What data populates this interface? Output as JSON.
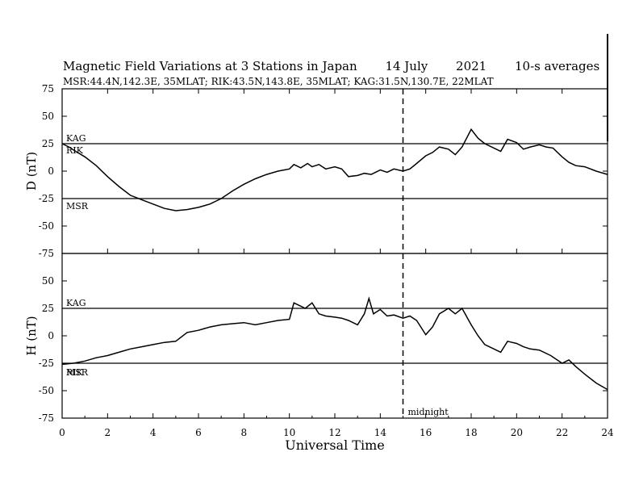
{
  "header": {
    "title": "Magnetic Field Variations at 3 Stations in Japan",
    "date": "14 July",
    "year": "2021",
    "averaging": "10-s averages",
    "stations": "MSR:44.4N,142.3E, 35MLAT;  RIK:43.5N,143.8E, 35MLAT;  KAG:31.5N,130.7E, 22MLAT"
  },
  "chart_data": [
    {
      "type": "line",
      "panel": "D",
      "ylabel": "D (nT)",
      "ylim": [
        -75,
        75
      ],
      "yticks": [
        "75",
        "50",
        "25",
        "0",
        "-25",
        "-50",
        "-75"
      ],
      "baselines": [
        {
          "name": "KAG",
          "offset": 25
        },
        {
          "name": "RIK",
          "offset": 25
        },
        {
          "name": "MSR",
          "offset": -25
        }
      ],
      "series": [
        {
          "name": "RIK",
          "x": [
            0,
            0.3,
            0.6,
            1.0,
            1.5,
            2.0,
            2.5,
            3.0,
            3.5,
            4.0,
            4.5,
            5.0,
            5.5,
            6.0,
            6.5,
            7.0,
            7.5,
            8.0,
            8.5,
            9.0,
            9.5,
            10.0,
            10.2,
            10.5,
            10.8,
            11.0,
            11.3,
            11.6,
            12.0,
            12.3,
            12.6,
            13.0,
            13.3,
            13.6,
            14.0,
            14.3,
            14.6,
            15.0,
            15.3,
            15.6,
            16.0,
            16.3,
            16.6,
            17.0,
            17.3,
            17.6,
            18.0,
            18.3,
            18.6,
            19.0,
            19.3,
            19.6,
            20.0,
            20.3,
            20.6,
            21.0,
            21.3,
            21.6,
            22.0,
            22.3,
            22.6,
            23.0,
            23.5,
            24.0
          ],
          "y": [
            25,
            22,
            18,
            13,
            5,
            -5,
            -14,
            -22,
            -26,
            -30,
            -34,
            -36,
            -35,
            -33,
            -30,
            -25,
            -18,
            -12,
            -7,
            -3,
            0,
            2,
            6,
            3,
            7,
            4,
            6,
            2,
            4,
            2,
            -5,
            -4,
            -2,
            -3,
            1,
            -1,
            2,
            0,
            2,
            7,
            14,
            17,
            22,
            20,
            15,
            22,
            38,
            30,
            25,
            21,
            18,
            29,
            26,
            20,
            22,
            24,
            22,
            21,
            13,
            8,
            5,
            4,
            0,
            -3
          ]
        },
        {
          "name": "MSR",
          "x": [
            12.3,
            14,
            16,
            18,
            20,
            21.6
          ],
          "y": [
            -25,
            -25,
            -25,
            -25,
            -25,
            -25
          ]
        }
      ]
    },
    {
      "type": "line",
      "panel": "H",
      "ylabel": "H (nT)",
      "ylim": [
        -75,
        75
      ],
      "yticks": [
        "75",
        "50",
        "25",
        "0",
        "-25",
        "-50",
        "-75"
      ],
      "xlabel": "Universal Time",
      "xlim": [
        0,
        24
      ],
      "xticks": [
        "0",
        "2",
        "4",
        "6",
        "8",
        "10",
        "12",
        "14",
        "16",
        "18",
        "20",
        "22",
        "24"
      ],
      "annotation": "midnight",
      "marker_x": 15,
      "baselines": [
        {
          "name": "KAG",
          "offset": 25
        },
        {
          "name": "RIK",
          "offset": -25
        },
        {
          "name": "MSR",
          "offset": -25
        }
      ],
      "series": [
        {
          "name": "RIK",
          "x": [
            0,
            0.5,
            1.0,
            1.5,
            2.0,
            2.5,
            3.0,
            3.5,
            4.0,
            4.5,
            5.0,
            5.5,
            6.0,
            6.5,
            7.0,
            7.5,
            8.0,
            8.5,
            9.0,
            9.5,
            10.0,
            10.2,
            10.4,
            10.7,
            11.0,
            11.3,
            11.6,
            12.0,
            12.3,
            12.6,
            13.0,
            13.3,
            13.5,
            13.7,
            14.0,
            14.3,
            14.6,
            15.0,
            15.3,
            15.6,
            16.0,
            16.3,
            16.6,
            17.0,
            17.3,
            17.6,
            18.0,
            18.3,
            18.6,
            19.0,
            19.3,
            19.6,
            20.0,
            20.3,
            20.6,
            21.0,
            21.5,
            22.0,
            22.3,
            22.6,
            23.0,
            23.5,
            24.0
          ],
          "y": [
            -26,
            -25,
            -23,
            -20,
            -18,
            -15,
            -12,
            -10,
            -8,
            -6,
            -5,
            3,
            5,
            8,
            10,
            11,
            12,
            10,
            12,
            14,
            15,
            30,
            28,
            25,
            30,
            20,
            18,
            17,
            16,
            14,
            10,
            20,
            34,
            20,
            24,
            18,
            19,
            16,
            18,
            14,
            1,
            8,
            20,
            25,
            20,
            25,
            10,
            0,
            -8,
            -12,
            -15,
            -5,
            -7,
            -10,
            -12,
            -13,
            -18,
            -25,
            -22,
            -28,
            -35,
            -43,
            -49
          ]
        },
        {
          "name": "MSR",
          "x": [
            12.3,
            14,
            16,
            18,
            20,
            21.6
          ],
          "y": [
            -25,
            -25,
            -25,
            -25,
            -25,
            -25
          ]
        }
      ]
    }
  ]
}
